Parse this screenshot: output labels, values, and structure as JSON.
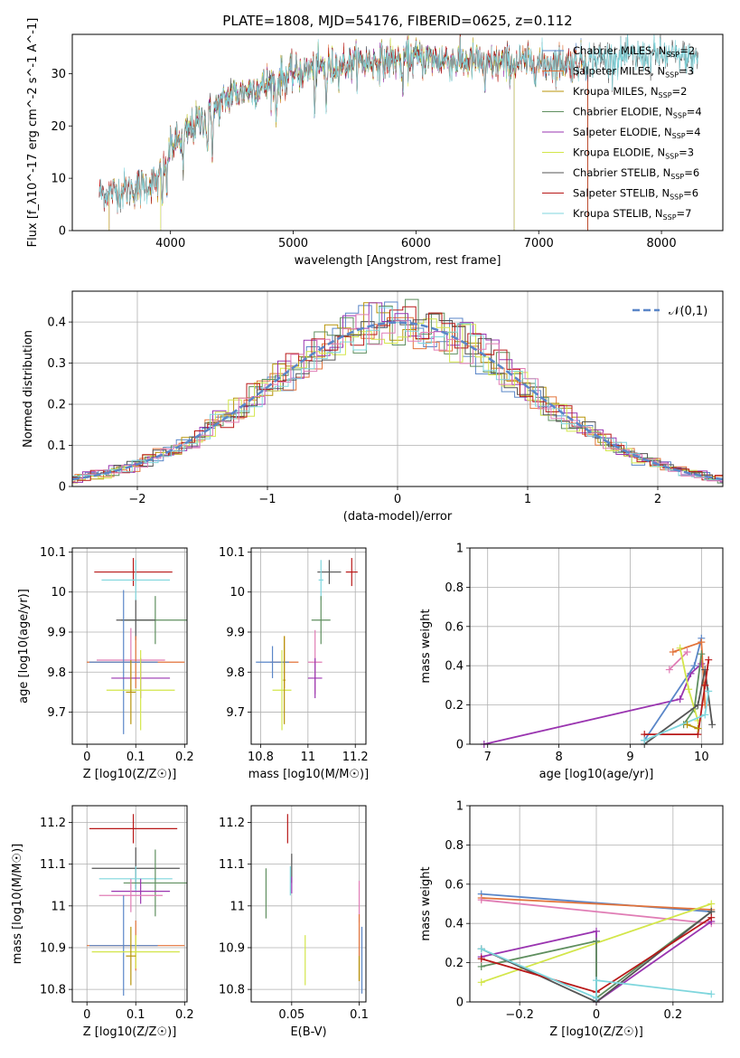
{
  "chart_data": [
    {
      "type": "line",
      "title": "PLATE=1808, MJD=54176, FIBERID=0625, z=0.112",
      "xlabel": "wavelength [Angstrom, rest frame]",
      "ylabel": "Flux [f_λ10^-17 erg cm^-2 s^-1 A^-1]",
      "xlim": [
        3200,
        8500
      ],
      "ylim": [
        0,
        37.5
      ],
      "xticks": [
        4000,
        5000,
        6000,
        7000,
        8000
      ],
      "yticks": [
        0,
        10,
        20,
        30
      ],
      "legend_location": "right",
      "series": [
        {
          "name": "Chabrier MILES, N_SSP=2",
          "label": "Chabrier MILES, N",
          "sub": "SSP",
          "tail": "=2",
          "color": "#5a86c8",
          "x_range": [
            3500,
            7400
          ]
        },
        {
          "name": "Salpeter MILES, N_SSP=3",
          "label": "Salpeter MILES, N",
          "sub": "SSP",
          "tail": "=3",
          "color": "#e2733a",
          "x_range": [
            3500,
            7400
          ]
        },
        {
          "name": "Kroupa MILES, N_SSP=2",
          "label": "Kroupa MILES, N",
          "sub": "SSP",
          "tail": "=2",
          "color": "#b8950a",
          "x_range": [
            3500,
            7400
          ]
        },
        {
          "name": "Chabrier ELODIE, N_SSP=4",
          "label": "Chabrier ELODIE, N",
          "sub": "SSP",
          "tail": "=4",
          "color": "#5f8f5f",
          "x_range": [
            3920,
            6800
          ]
        },
        {
          "name": "Salpeter ELODIE, N_SSP=4",
          "label": "Salpeter ELODIE, N",
          "sub": "SSP",
          "tail": "=4",
          "color": "#9a35b0",
          "x_range": [
            3920,
            6800
          ]
        },
        {
          "name": "Kroupa ELODIE, N_SSP=3",
          "label": "Kroupa ELODIE, N",
          "sub": "SSP",
          "tail": "=3",
          "color": "#d3e64a",
          "x_range": [
            3920,
            6800
          ]
        },
        {
          "name": "Chabrier STELIB, N_SSP=6",
          "label": "Chabrier STELIB, N",
          "sub": "SSP",
          "tail": "=6",
          "color": "#555555",
          "x_range": [
            3420,
            8300
          ]
        },
        {
          "name": "Salpeter STELIB, N_SSP=6",
          "label": "Salpeter STELIB, N",
          "sub": "SSP",
          "tail": "=6",
          "color": "#b81818",
          "x_range": [
            3420,
            7400
          ]
        },
        {
          "name": "Kroupa STELIB, N_SSP=7",
          "label": "Kroupa STELIB, N",
          "sub": "SSP",
          "tail": "=7",
          "color": "#7fd6dd",
          "x_range": [
            3420,
            8300
          ]
        }
      ],
      "approx_continuum": {
        "x": [
          3420,
          3700,
          3900,
          4000,
          4300,
          4500,
          4800,
          5000,
          5200,
          5500,
          5800,
          6000,
          6300,
          6600,
          6900,
          7200,
          7600,
          8000,
          8300
        ],
        "y": [
          7,
          8,
          9.5,
          16,
          22,
          26,
          28,
          30,
          31,
          32,
          32.5,
          33,
          32.5,
          32,
          32,
          32,
          33,
          33.5,
          33
        ]
      }
    },
    {
      "type": "line",
      "xlabel": "(data-model)/error",
      "ylabel": "Normed distribution",
      "xlim": [
        -2.5,
        2.5
      ],
      "ylim": [
        0,
        0.475
      ],
      "xticks": [
        -2,
        -1,
        0,
        1,
        2
      ],
      "yticks": [
        0.0,
        0.1,
        0.2,
        0.3,
        0.4
      ],
      "grid": true,
      "legend_location": "top-right",
      "legend": [
        "𝒩(0,1)"
      ],
      "reference_curve": {
        "name": "𝒩(0,1)",
        "mean": 0,
        "sigma": 1,
        "style": "dashed",
        "color": "#5a86c8"
      },
      "histograms": {
        "bin_width": 0.1,
        "colors": [
          "#5a86c8",
          "#e2733a",
          "#b8950a",
          "#5f8f5f",
          "#9a35b0",
          "#d3e64a",
          "#555555",
          "#b81818",
          "#7fd6dd",
          "#e07db5"
        ]
      }
    },
    {
      "type": "scatter",
      "panel": "age-vs-Z",
      "xlabel": "Z [log10(Z/Z☉)]",
      "ylabel": "age  [log10(age/yr)]",
      "xlim": [
        -0.03,
        0.205
      ],
      "ylim": [
        9.62,
        10.11
      ],
      "xticks": [
        0.0,
        0.1,
        0.2
      ],
      "yticks": [
        9.7,
        9.8,
        9.9,
        10.0,
        10.1
      ],
      "grid": true,
      "points": [
        {
          "color": "#b81818",
          "x": 0.095,
          "y": 10.05,
          "xerr": [
            0.08,
            0.08
          ],
          "yerr": [
            0.035,
            0.035
          ]
        },
        {
          "color": "#7fd6dd",
          "x": 0.1,
          "y": 10.03,
          "xerr": [
            0.07,
            0.07
          ],
          "yerr": [
            0.05,
            0.05
          ]
        },
        {
          "color": "#5f8f5f",
          "x": 0.14,
          "y": 9.93,
          "xerr": [
            0.07,
            0.07
          ],
          "yerr": [
            0.06,
            0.06
          ]
        },
        {
          "color": "#555555",
          "x": 0.1,
          "y": 9.93,
          "xerr": [
            0.04,
            0.04
          ],
          "yerr": [
            0.05,
            0.05
          ]
        },
        {
          "color": "#e07db5",
          "x": 0.09,
          "y": 9.83,
          "xerr": [
            0.07,
            0.07
          ],
          "yerr": [
            0.08,
            0.08
          ]
        },
        {
          "color": "#e2733a",
          "x": 0.1,
          "y": 9.825,
          "xerr": [
            0.1,
            0.1
          ],
          "yerr": [
            0.065,
            0.065
          ]
        },
        {
          "color": "#5a86c8",
          "x": 0.075,
          "y": 9.825,
          "xerr": [
            0.07,
            0.07
          ],
          "yerr": [
            0.18,
            0.18
          ]
        },
        {
          "color": "#9a35b0",
          "x": 0.11,
          "y": 9.785,
          "xerr": [
            0.06,
            0.06
          ],
          "yerr": [
            0.05,
            0.05
          ]
        },
        {
          "color": "#d3e64a",
          "x": 0.11,
          "y": 9.755,
          "xerr": [
            0.07,
            0.07
          ],
          "yerr": [
            0.1,
            0.1
          ]
        },
        {
          "color": "#b8950a",
          "x": 0.09,
          "y": 9.75,
          "xerr": [
            0.01,
            0.01
          ],
          "yerr": [
            0.08,
            0.08
          ]
        }
      ]
    },
    {
      "type": "scatter",
      "panel": "age-vs-mass",
      "xlabel": "mass [log10(M/M☉)]",
      "ylabel": "",
      "xlim": [
        10.76,
        11.245
      ],
      "ylim": [
        9.62,
        10.11
      ],
      "xticks": [
        10.8,
        11.0,
        11.2
      ],
      "yticks": [
        9.7,
        9.8,
        9.9,
        10.0,
        10.1
      ],
      "grid": true,
      "points": [
        {
          "color": "#b81818",
          "x": 11.185,
          "y": 10.05,
          "xerr": [
            0.025,
            0.025
          ],
          "yerr": [
            0.035,
            0.035
          ]
        },
        {
          "color": "#555555",
          "x": 11.09,
          "y": 10.05,
          "xerr": [
            0.05,
            0.05
          ],
          "yerr": [
            0.03,
            0.03
          ]
        },
        {
          "color": "#7fd6dd",
          "x": 11.055,
          "y": 10.03,
          "xerr": [
            0.01,
            0.01
          ],
          "yerr": [
            0.05,
            0.05
          ]
        },
        {
          "color": "#5f8f5f",
          "x": 11.055,
          "y": 9.93,
          "xerr": [
            0.04,
            0.04
          ],
          "yerr": [
            0.06,
            0.06
          ]
        },
        {
          "color": "#e2733a",
          "x": 10.9,
          "y": 9.825,
          "xerr": [
            0.06,
            0.06
          ],
          "yerr": [
            0.065,
            0.065
          ]
        },
        {
          "color": "#5a86c8",
          "x": 10.85,
          "y": 9.825,
          "xerr": [
            0.07,
            0.07
          ],
          "yerr": [
            0.04,
            0.04
          ]
        },
        {
          "color": "#e07db5",
          "x": 11.03,
          "y": 9.825,
          "xerr": [
            0.03,
            0.03
          ],
          "yerr": [
            0.08,
            0.08
          ]
        },
        {
          "color": "#9a35b0",
          "x": 11.03,
          "y": 9.785,
          "xerr": [
            0.03,
            0.03
          ],
          "yerr": [
            0.05,
            0.05
          ]
        },
        {
          "color": "#d3e64a",
          "x": 10.89,
          "y": 9.755,
          "xerr": [
            0.04,
            0.04
          ],
          "yerr": [
            0.1,
            0.1
          ]
        },
        {
          "color": "#b8950a",
          "x": 10.9,
          "y": 9.78,
          "xerr": [
            0.005,
            0.005
          ],
          "yerr": [
            0.11,
            0.11
          ]
        }
      ]
    },
    {
      "type": "line",
      "panel": "mass-weight-vs-age",
      "xlabel": "age  [log10(age/yr)]",
      "ylabel": "mass weight",
      "xlim": [
        6.75,
        10.3
      ],
      "ylim": [
        0.0,
        1.0
      ],
      "xticks": [
        7,
        8,
        9,
        10
      ],
      "yticks": [
        0.0,
        0.2,
        0.4,
        0.6,
        0.8,
        1.0
      ],
      "grid": true,
      "series": [
        {
          "color": "#9a35b0",
          "x": [
            6.95,
            9.7,
            9.85,
            10.0
          ],
          "y": [
            0.0,
            0.23,
            0.36,
            0.41
          ]
        },
        {
          "color": "#5a86c8",
          "x": [
            9.2,
            9.9,
            10.0
          ],
          "y": [
            0.02,
            0.4,
            0.54
          ]
        },
        {
          "color": "#e2733a",
          "x": [
            9.6,
            10.0,
            10.05
          ],
          "y": [
            0.47,
            0.52,
            0.2
          ]
        },
        {
          "color": "#5f8f5f",
          "x": [
            9.75,
            9.9,
            10.0
          ],
          "y": [
            0.1,
            0.18,
            0.46
          ]
        },
        {
          "color": "#e07db5",
          "x": [
            9.55,
            9.8
          ],
          "y": [
            0.38,
            0.47
          ]
        },
        {
          "color": "#d3e64a",
          "x": [
            9.7,
            9.82,
            9.95
          ],
          "y": [
            0.49,
            0.28,
            0.12
          ]
        },
        {
          "color": "#555555",
          "x": [
            9.2,
            9.95,
            10.05,
            10.15
          ],
          "y": [
            0.0,
            0.2,
            0.38,
            0.1
          ]
        },
        {
          "color": "#b81818",
          "x": [
            9.2,
            9.95,
            10.05,
            10.1
          ],
          "y": [
            0.05,
            0.05,
            0.3,
            0.43
          ]
        },
        {
          "color": "#7fd6dd",
          "x": [
            9.2,
            10.05,
            10.1
          ],
          "y": [
            0.02,
            0.15,
            0.27
          ]
        },
        {
          "color": "#b8950a",
          "x": [
            9.8,
            9.95
          ],
          "y": [
            0.1,
            0.08
          ]
        }
      ]
    },
    {
      "type": "scatter",
      "panel": "mass-vs-Z",
      "xlabel": "Z [log10(Z/Z☉)]",
      "ylabel": "mass [log10(M/M☉)]",
      "xlim": [
        -0.03,
        0.205
      ],
      "ylim": [
        10.77,
        11.24
      ],
      "xticks": [
        0.0,
        0.1,
        0.2
      ],
      "yticks": [
        10.8,
        10.9,
        11.0,
        11.1,
        11.2
      ],
      "grid": true,
      "points": [
        {
          "color": "#b81818",
          "x": 0.095,
          "y": 11.185,
          "xerr": [
            0.09,
            0.09
          ],
          "yerr": [
            0.035,
            0.035
          ]
        },
        {
          "color": "#555555",
          "x": 0.1,
          "y": 11.09,
          "xerr": [
            0.09,
            0.09
          ],
          "yerr": [
            0.05,
            0.05
          ]
        },
        {
          "color": "#7fd6dd",
          "x": 0.1,
          "y": 11.065,
          "xerr": [
            0.075,
            0.075
          ],
          "yerr": [
            0.03,
            0.03
          ]
        },
        {
          "color": "#5f8f5f",
          "x": 0.14,
          "y": 11.055,
          "xerr": [
            0.065,
            0.065
          ],
          "yerr": [
            0.08,
            0.08
          ]
        },
        {
          "color": "#9a35b0",
          "x": 0.11,
          "y": 11.035,
          "xerr": [
            0.06,
            0.06
          ],
          "yerr": [
            0.03,
            0.03
          ]
        },
        {
          "color": "#e07db5",
          "x": 0.09,
          "y": 11.025,
          "xerr": [
            0.065,
            0.065
          ],
          "yerr": [
            0.04,
            0.04
          ]
        },
        {
          "color": "#e2733a",
          "x": 0.1,
          "y": 10.905,
          "xerr": [
            0.1,
            0.1
          ],
          "yerr": [
            0.06,
            0.06
          ]
        },
        {
          "color": "#5a86c8",
          "x": 0.075,
          "y": 10.905,
          "xerr": [
            0.07,
            0.07
          ],
          "yerr": [
            0.12,
            0.12
          ]
        },
        {
          "color": "#d3e64a",
          "x": 0.1,
          "y": 10.89,
          "xerr": [
            0.09,
            0.09
          ],
          "yerr": [
            0.04,
            0.04
          ]
        },
        {
          "color": "#b8950a",
          "x": 0.09,
          "y": 10.88,
          "xerr": [
            0.01,
            0.01
          ],
          "yerr": [
            0.07,
            0.07
          ]
        }
      ]
    },
    {
      "type": "scatter",
      "panel": "mass-vs-EBV",
      "xlabel": "E(B-V)",
      "ylabel": "",
      "xlim": [
        0.02,
        0.105
      ],
      "ylim": [
        10.77,
        11.24
      ],
      "xticks": [
        0.05,
        0.1
      ],
      "yticks": [
        10.8,
        10.9,
        11.0,
        11.1,
        11.2
      ],
      "grid": true,
      "points": [
        {
          "color": "#b81818",
          "x": 0.047,
          "y": 11.185,
          "yerr": [
            0.035,
            0.035
          ]
        },
        {
          "color": "#555555",
          "x": 0.05,
          "y": 11.09,
          "yerr": [
            0.035,
            0.035
          ]
        },
        {
          "color": "#7fd6dd",
          "x": 0.049,
          "y": 11.06,
          "yerr": [
            0.035,
            0.035
          ]
        },
        {
          "color": "#5f8f5f",
          "x": 0.031,
          "y": 11.03,
          "yerr": [
            0.06,
            0.06
          ]
        },
        {
          "color": "#9a35b0",
          "x": 0.05,
          "y": 11.05,
          "yerr": [
            0.02,
            0.02
          ]
        },
        {
          "color": "#e07db5",
          "x": 0.1,
          "y": 11.01,
          "yerr": [
            0.05,
            0.05
          ]
        },
        {
          "color": "#e2733a",
          "x": 0.1,
          "y": 10.9,
          "yerr": [
            0.08,
            0.08
          ]
        },
        {
          "color": "#5a86c8",
          "x": 0.102,
          "y": 10.87,
          "yerr": [
            0.08,
            0.08
          ]
        },
        {
          "color": "#d3e64a",
          "x": 0.06,
          "y": 10.87,
          "yerr": [
            0.06,
            0.06
          ]
        },
        {
          "color": "#b8950a",
          "x": 0.1,
          "y": 10.85,
          "yerr": [
            0.03,
            0.03
          ]
        }
      ]
    },
    {
      "type": "line",
      "panel": "mass-weight-vs-Z",
      "xlabel": "Z [log10(Z/Z☉)]",
      "ylabel": "mass weight",
      "xlim": [
        -0.33,
        0.33
      ],
      "ylim": [
        0.0,
        1.0
      ],
      "xticks": [
        -0.2,
        0.0,
        0.2
      ],
      "yticks": [
        0.0,
        0.2,
        0.4,
        0.6,
        0.8,
        1.0
      ],
      "grid": true,
      "series": [
        {
          "color": "#5a86c8",
          "x": [
            -0.3,
            0.3
          ],
          "y": [
            0.55,
            0.46
          ]
        },
        {
          "color": "#e2733a",
          "x": [
            -0.3,
            0.3
          ],
          "y": [
            0.53,
            0.47
          ]
        },
        {
          "color": "#e07db5",
          "x": [
            -0.3,
            0.3
          ],
          "y": [
            0.52,
            0.4
          ]
        },
        {
          "color": "#d3e64a",
          "x": [
            -0.3,
            0.3
          ],
          "y": [
            0.1,
            0.5
          ]
        },
        {
          "color": "#9a35b0",
          "x": [
            -0.3,
            0.0,
            0.0,
            0.3
          ],
          "y": [
            0.23,
            0.36,
            0.0,
            0.41
          ]
        },
        {
          "color": "#5f8f5f",
          "x": [
            -0.3,
            0.0,
            0.0,
            0.3
          ],
          "y": [
            0.18,
            0.31,
            0.02,
            0.46
          ]
        },
        {
          "color": "#555555",
          "x": [
            -0.3,
            0.0,
            0.3
          ],
          "y": [
            0.27,
            0.0,
            0.46
          ]
        },
        {
          "color": "#b81818",
          "x": [
            -0.3,
            0.0,
            0.3
          ],
          "y": [
            0.22,
            0.05,
            0.43
          ]
        },
        {
          "color": "#7fd6dd",
          "x": [
            -0.3,
            0.0,
            0.0,
            0.3
          ],
          "y": [
            0.27,
            0.02,
            0.11,
            0.04
          ]
        }
      ]
    }
  ]
}
